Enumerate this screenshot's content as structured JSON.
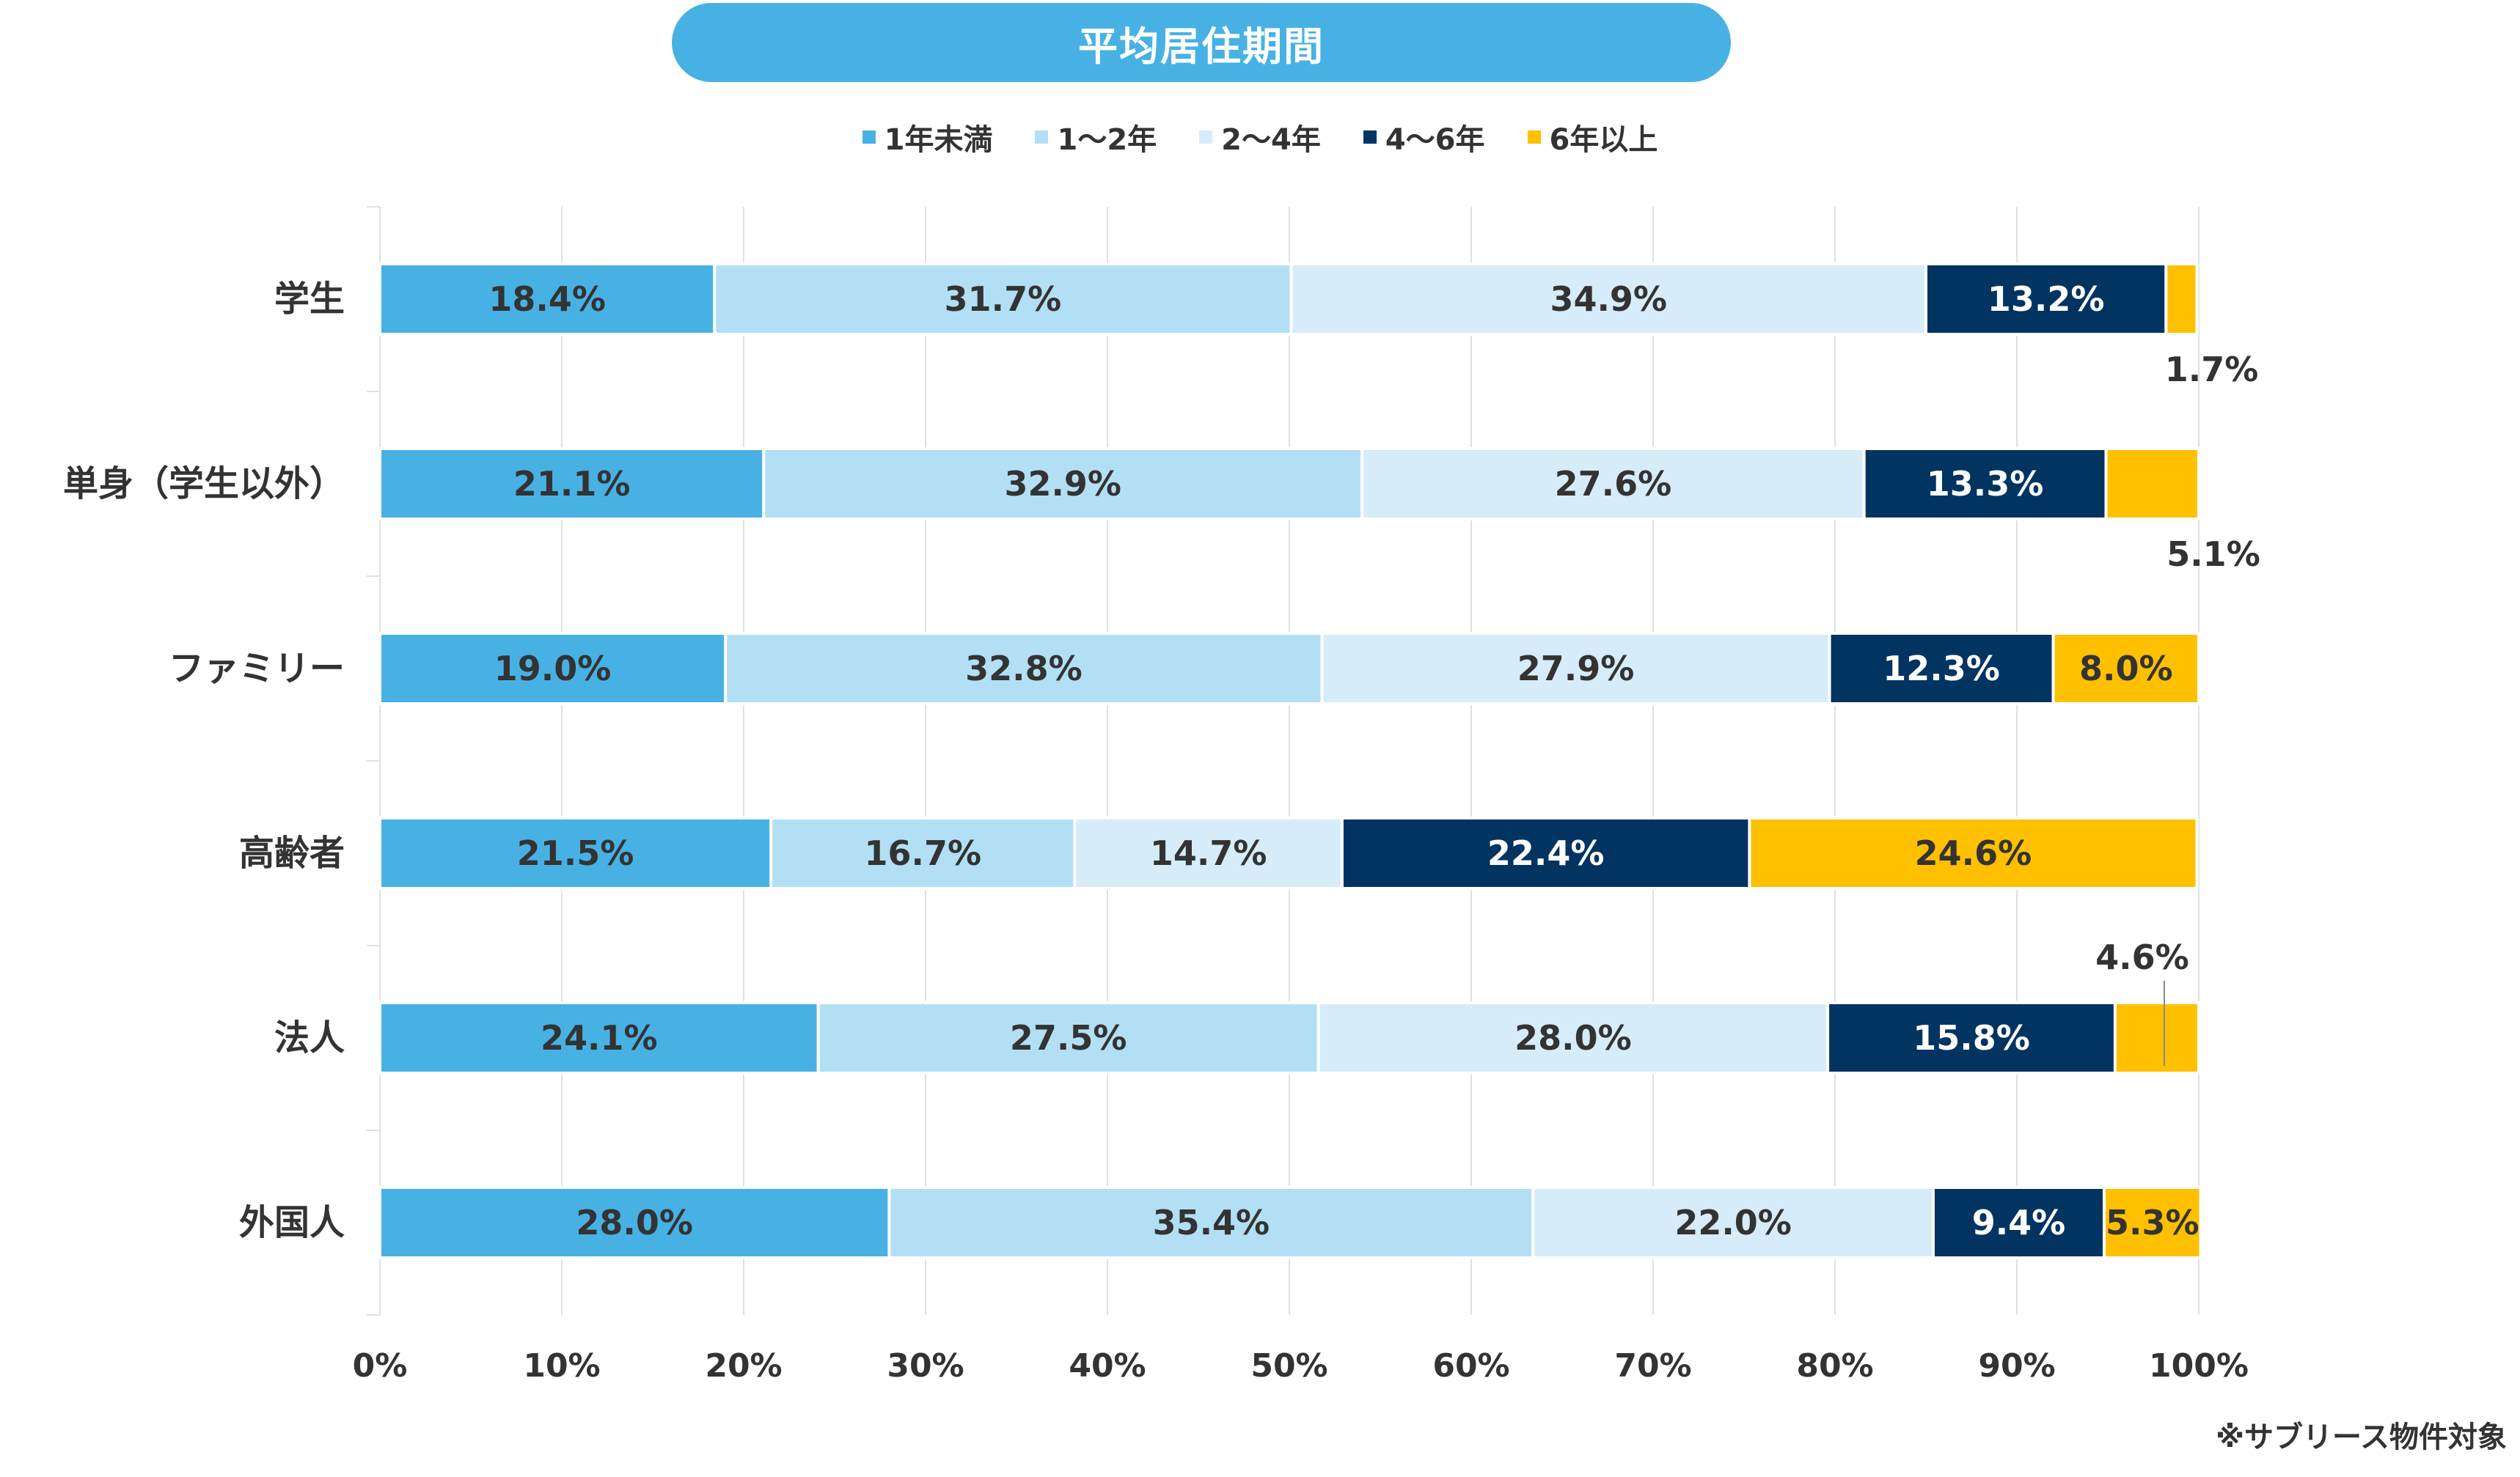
{
  "title": "平均居住期間",
  "note": "※サブリース物件対象",
  "colors": {
    "title_bg": "#48b1e4",
    "gridline": "#e0e0e0",
    "axis_text": "#333333"
  },
  "chart_data": {
    "type": "bar",
    "orientation": "horizontal",
    "stacked": "percent",
    "categories": [
      "学生",
      "単身（学生以外）",
      "ファミリー",
      "高齢者",
      "法人",
      "外国人"
    ],
    "series": [
      {
        "name": "1年未満",
        "color": "#48b1e4",
        "label_color": "#333333",
        "values": [
          18.4,
          21.1,
          19.0,
          21.5,
          24.1,
          28.0
        ]
      },
      {
        "name": "1〜2年",
        "color": "#b3dff4",
        "label_color": "#333333",
        "values": [
          31.7,
          32.9,
          32.8,
          16.7,
          27.5,
          35.4
        ]
      },
      {
        "name": "2〜4年",
        "color": "#d6ecf8",
        "label_color": "#333333",
        "values": [
          34.9,
          27.6,
          27.9,
          14.7,
          28.0,
          22.0
        ]
      },
      {
        "name": "4〜6年",
        "color": "#013461",
        "label_color": "#ffffff",
        "values": [
          13.2,
          13.3,
          12.3,
          22.4,
          15.8,
          9.4
        ]
      },
      {
        "name": "6年以上",
        "color": "#ffc000",
        "label_color": "#333333",
        "values": [
          1.7,
          5.1,
          8.0,
          24.6,
          4.6,
          5.3
        ]
      }
    ],
    "data_labels": [
      [
        "18.4%",
        "21.1%",
        "19.0%",
        "21.5%",
        "24.1%",
        "28.0%"
      ],
      [
        "31.7%",
        "32.9%",
        "32.8%",
        "16.7%",
        "27.5%",
        "35.4%"
      ],
      [
        "34.9%",
        "27.6%",
        "27.9%",
        "14.7%",
        "28.0%",
        "22.0%"
      ],
      [
        "13.2%",
        "13.3%",
        "12.3%",
        "22.4%",
        "15.8%",
        "9.4%"
      ],
      [
        "1.7%",
        "5.1%",
        "8.0%",
        "24.6%",
        "4.6%",
        "5.3%"
      ]
    ],
    "outside_labels": [
      {
        "category": 0,
        "series": 4,
        "placement": "below"
      },
      {
        "category": 1,
        "series": 4,
        "placement": "below"
      },
      {
        "category": 4,
        "series": 4,
        "placement": "above"
      }
    ],
    "x_ticks": [
      "0%",
      "10%",
      "20%",
      "30%",
      "40%",
      "50%",
      "60%",
      "70%",
      "80%",
      "90%",
      "100%"
    ],
    "xlim": [
      0,
      100
    ],
    "grid": true,
    "legend_position": "top"
  }
}
